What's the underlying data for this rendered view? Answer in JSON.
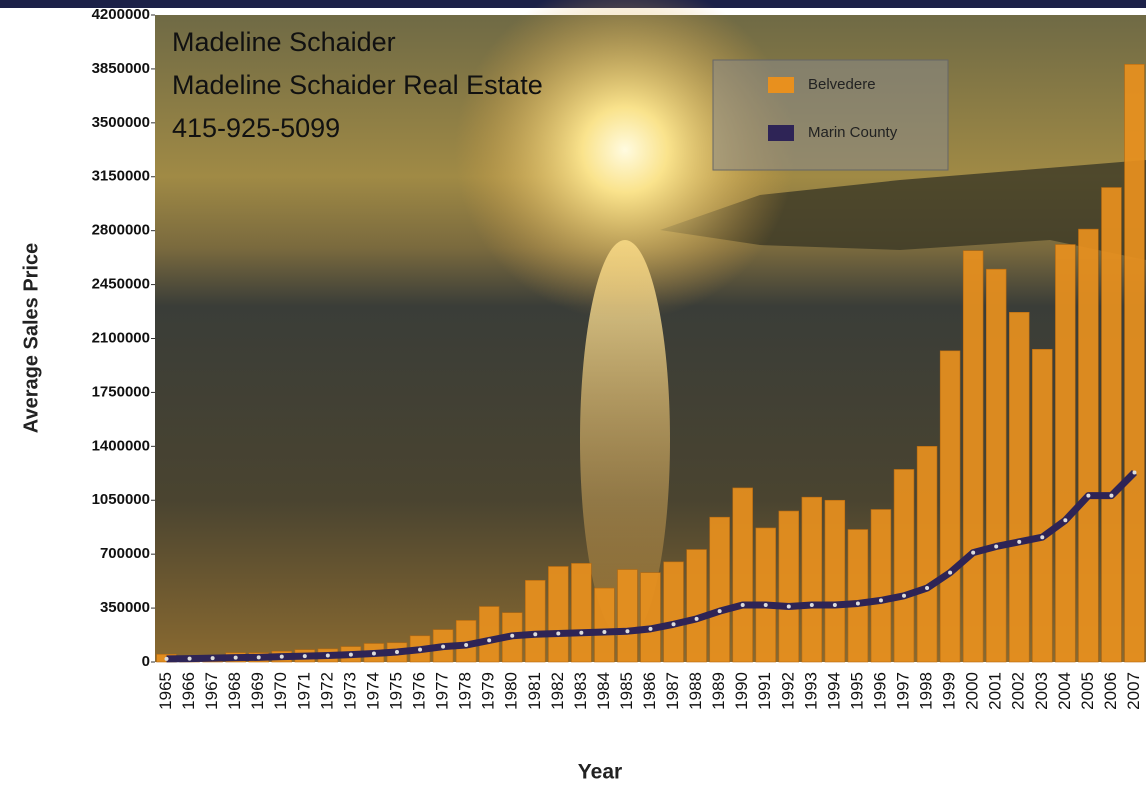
{
  "chart_data": {
    "type": "bar_line",
    "annotations": [
      "Madeline Schaider",
      "Madeline Schaider Real Estate",
      "415-925-5099"
    ],
    "x_label": "Year",
    "y_label": "Average Sales Price",
    "categories": [
      "1965",
      "1966",
      "1967",
      "1968",
      "1969",
      "1970",
      "1971",
      "1972",
      "1973",
      "1974",
      "1975",
      "1976",
      "1977",
      "1978",
      "1979",
      "1980",
      "1981",
      "1982",
      "1983",
      "1984",
      "1985",
      "1986",
      "1987",
      "1988",
      "1989",
      "1990",
      "1991",
      "1992",
      "1993",
      "1994",
      "1995",
      "1996",
      "1997",
      "1998",
      "1999",
      "2000",
      "2001",
      "2002",
      "2003",
      "2004",
      "2005",
      "2006",
      "2007"
    ],
    "series": [
      {
        "name": "Belvedere",
        "type": "bar",
        "color": "#e8901e",
        "values": [
          50000,
          40000,
          40000,
          60000,
          60000,
          70000,
          80000,
          85000,
          100000,
          120000,
          125000,
          170000,
          210000,
          270000,
          360000,
          320000,
          530000,
          620000,
          640000,
          480000,
          600000,
          580000,
          650000,
          730000,
          940000,
          1130000,
          870000,
          980000,
          1070000,
          1050000,
          860000,
          990000,
          1250000,
          1400000,
          2020000,
          2670000,
          2550000,
          2270000,
          2030000,
          2710000,
          2810000,
          3080000,
          3880000
        ]
      },
      {
        "name": "Marin County",
        "type": "line",
        "color": "#2e2456",
        "values": [
          20000,
          22000,
          25000,
          28000,
          30000,
          35000,
          38000,
          42000,
          48000,
          55000,
          65000,
          80000,
          100000,
          110000,
          140000,
          170000,
          180000,
          185000,
          190000,
          195000,
          200000,
          215000,
          245000,
          280000,
          330000,
          370000,
          370000,
          360000,
          370000,
          370000,
          380000,
          400000,
          430000,
          480000,
          580000,
          710000,
          750000,
          780000,
          810000,
          920000,
          1080000,
          1080000,
          1230000
        ]
      }
    ],
    "ylim": [
      0,
      4200000
    ],
    "yticks": [
      0,
      350000,
      700000,
      1050000,
      1400000,
      1750000,
      2100000,
      2450000,
      2800000,
      3150000,
      3500000,
      3850000,
      4200000
    ],
    "legend": "upper right"
  }
}
